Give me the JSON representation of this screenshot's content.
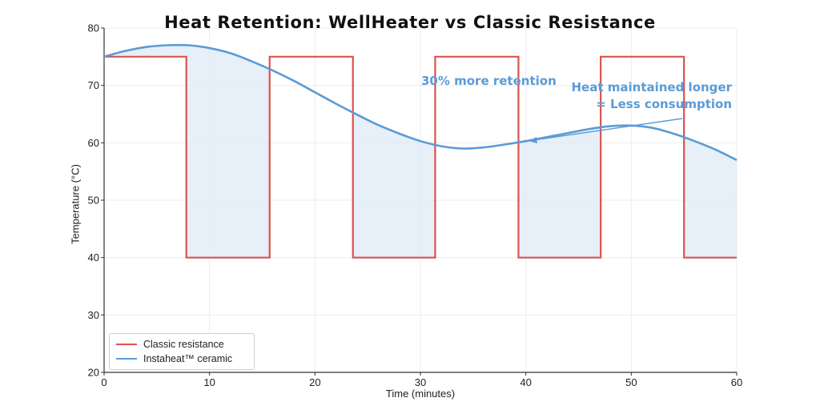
{
  "chart_data": {
    "type": "line",
    "title": "Heat Retention: WellHeater vs Classic Resistance",
    "xlabel": "Time (minutes)",
    "ylabel": "Temperature (°C)",
    "xlim": [
      0,
      60
    ],
    "ylim": [
      20,
      80
    ],
    "xticks": [
      0,
      10,
      20,
      30,
      40,
      50,
      60
    ],
    "yticks": [
      20,
      30,
      40,
      50,
      60,
      70,
      80
    ],
    "grid": true,
    "legend_position": "bottom-left",
    "series": [
      {
        "name": "Classic resistance",
        "color": "#d9534f",
        "x": [
          0,
          7.8,
          7.8,
          15.7,
          15.7,
          23.6,
          23.6,
          31.4,
          31.4,
          39.3,
          39.3,
          47.1,
          47.1,
          55,
          55,
          60
        ],
        "y": [
          75,
          75,
          40,
          40,
          75,
          75,
          40,
          40,
          75,
          75,
          40,
          40,
          75,
          75,
          40,
          40
        ]
      },
      {
        "name": "Instaheat™ ceramic",
        "color": "#5b9bd5",
        "x": [
          0,
          2,
          4,
          6,
          8,
          10,
          12,
          14,
          16,
          18,
          20,
          22,
          24,
          26,
          28,
          30,
          32,
          34,
          36,
          38,
          40,
          42,
          44,
          46,
          48,
          50,
          52,
          54,
          56,
          58,
          60
        ],
        "y": [
          75,
          76,
          76.7,
          77,
          77,
          76.5,
          75.6,
          74.2,
          72.6,
          70.8,
          68.8,
          66.8,
          64.9,
          63.1,
          61.6,
          60.3,
          59.4,
          59,
          59.2,
          59.7,
          60.3,
          61,
          61.7,
          62.4,
          62.9,
          63,
          62.6,
          61.6,
          60.3,
          58.8,
          57
        ]
      }
    ],
    "annotations": [
      {
        "text": "30% more retention"
      },
      {
        "text": "Heat maintained longer",
        "text2": "= Less consumption"
      }
    ]
  }
}
